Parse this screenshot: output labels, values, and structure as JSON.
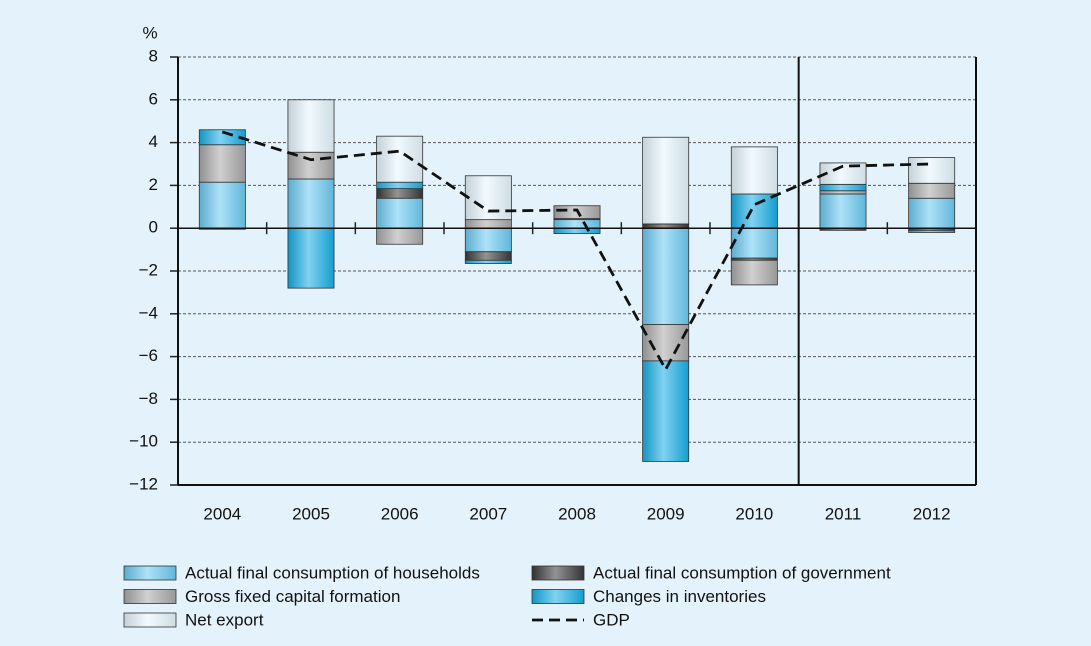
{
  "chart_data": {
    "type": "stacked_bar_line",
    "y_label": "%",
    "categories": [
      "2004",
      "2005",
      "2006",
      "2007",
      "2008",
      "2009",
      "2010",
      "2011",
      "2012"
    ],
    "divider_after": "2010",
    "ylim": [
      -12,
      8
    ],
    "yticks": [
      {
        "value": -12,
        "label": "−12"
      },
      {
        "value": -10,
        "label": "−10"
      },
      {
        "value": -8,
        "label": "−8"
      },
      {
        "value": -6,
        "label": "−6"
      },
      {
        "value": -4,
        "label": "−4"
      },
      {
        "value": -2,
        "label": "−2"
      },
      0,
      2,
      4,
      6,
      8
    ],
    "grid": true,
    "series": [
      {
        "name": "Actual final consumption of households",
        "color": "#6ccaf2",
        "values": [
          2.15,
          2.3,
          1.4,
          -1.1,
          0.4,
          -4.5,
          -1.4,
          1.6,
          1.4
        ]
      },
      {
        "name": "Actual final consumption of government",
        "color": "#3a3a3a",
        "values": [
          0,
          0,
          0.45,
          -0.4,
          0.05,
          0.2,
          -0.1,
          -0.1,
          -0.1
        ]
      },
      {
        "name": "Gross fixed capital formation",
        "color": "#a9a9a9",
        "values": [
          1.75,
          1.25,
          -0.75,
          0.4,
          0.6,
          -1.7,
          -1.15,
          0.15,
          0.7
        ]
      },
      {
        "name": "Changes in inventories",
        "color": "#18aee6",
        "values": [
          0.7,
          -2.8,
          0.3,
          -0.15,
          -0.25,
          -4.7,
          1.6,
          0.3,
          -0.1
        ]
      },
      {
        "name": "Net export",
        "color": "#e6f6fd",
        "values": [
          -0.05,
          2.45,
          2.15,
          2.05,
          0,
          4.05,
          2.2,
          1.0,
          1.2
        ]
      }
    ],
    "line": {
      "name": "GDP",
      "color": "#111111",
      "values": [
        4.5,
        3.2,
        3.6,
        0.8,
        0.85,
        -6.6,
        1.1,
        2.9,
        3.0
      ]
    }
  }
}
